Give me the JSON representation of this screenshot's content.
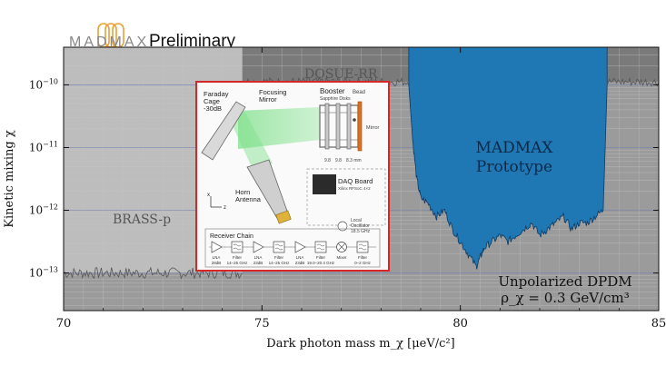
{
  "header": {
    "logo_text": "MADMAX",
    "label": "Preliminary"
  },
  "colors": {
    "panel_background": "#9b9b9b",
    "dosue_region": "#7a7a7a",
    "brass_region": "#bdbdbd",
    "madmax_fill": "#1f77b4",
    "madmax_edge": "#0d3b66",
    "inset_border": "#d62728",
    "beam": "#7ee08a"
  },
  "chart_data": {
    "type": "area",
    "title": "",
    "xlabel": "Dark photon mass m_χ [μeV/c²]",
    "ylabel": "Kinetic mixing χ",
    "xlim": [
      70,
      85
    ],
    "ylim_log10": [
      -13.6,
      -9.4
    ],
    "y_scale": "log",
    "grid": true,
    "x_ticks": [
      "70",
      "75",
      "80",
      "85"
    ],
    "y_ticks": [
      {
        "base": "10",
        "exp": "−10",
        "log10": -10
      },
      {
        "base": "10",
        "exp": "−11",
        "log10": -11
      },
      {
        "base": "10",
        "exp": "−12",
        "log10": -12
      },
      {
        "base": "10",
        "exp": "−13",
        "log10": -13
      }
    ],
    "series": [
      {
        "name": "DOSUE-RR",
        "x_range": [
          74.5,
          85
        ],
        "log10_chi_limit": -9.95
      },
      {
        "name": "BRASS-p",
        "x_range": [
          70,
          74.5
        ],
        "log10_chi_limit": -13.0
      },
      {
        "name": "MADMAX Prototype",
        "x": [
          78.7,
          78.8,
          78.9,
          79.0,
          79.2,
          79.4,
          79.6,
          79.8,
          80.0,
          80.2,
          80.4,
          80.5,
          80.6,
          80.8,
          81.0,
          81.2,
          81.4,
          81.6,
          81.8,
          82.0,
          82.2,
          82.4,
          82.6,
          82.8,
          83.0,
          83.2,
          83.4,
          83.6,
          83.7
        ],
        "log10_chi": [
          -10.0,
          -10.9,
          -11.5,
          -11.8,
          -11.9,
          -12.1,
          -12.0,
          -12.3,
          -12.5,
          -12.7,
          -12.9,
          -12.75,
          -12.6,
          -12.5,
          -12.4,
          -12.5,
          -12.4,
          -12.3,
          -12.2,
          -12.4,
          -12.3,
          -12.2,
          -12.1,
          -12.3,
          -12.2,
          -12.2,
          -12.1,
          -12.0,
          -10.0
        ]
      }
    ],
    "annotations": {
      "dosue": "DOSUE-RR",
      "brass": "BRASS-p",
      "madmax_line1": "MADMAX",
      "madmax_line2": "Prototype",
      "model_line1": "Unpolarized DPDM",
      "model_line2": "ρ_χ = 0.3 GeV/cm³"
    }
  },
  "inset": {
    "faraday_cage": [
      "Faraday",
      "Cage",
      "-30dB"
    ],
    "focusing_mirror": [
      "Focusing",
      "Mirror"
    ],
    "booster": "Booster",
    "sapphire_disks": "Sapphire Disks",
    "bead": "Bead",
    "mirror": "Mirror",
    "dim_labels": [
      "9.8",
      "9.8",
      "8.3 mm"
    ],
    "horn_antenna": [
      "Horn",
      "Antenna"
    ],
    "axis_x": "x",
    "axis_z": "z",
    "daq_board": "DAQ Board",
    "daq_sub": "Xilinx RFSoC 4×2",
    "local_oscillator": [
      "Local",
      "Oscillator",
      "18.5 GHz"
    ],
    "receiver_chain": "Receiver Chain",
    "chain": [
      {
        "type": "amp",
        "label1": "LNA",
        "label2": "28dB"
      },
      {
        "type": "filter",
        "label1": "Filter",
        "label2": "14–25 GHz"
      },
      {
        "type": "amp",
        "label1": "LNA",
        "label2": "23dB"
      },
      {
        "type": "filter",
        "label1": "Filter",
        "label2": "14–25 GHz"
      },
      {
        "type": "amp",
        "label1": "LNA",
        "label2": "23dB"
      },
      {
        "type": "filter",
        "label1": "Filter",
        "label2": "19.0–20.4 GHz"
      },
      {
        "type": "mixer",
        "label1": "Mixer",
        "label2": ""
      },
      {
        "type": "filter",
        "label1": "Filter",
        "label2": "0–2 GHz"
      }
    ]
  }
}
